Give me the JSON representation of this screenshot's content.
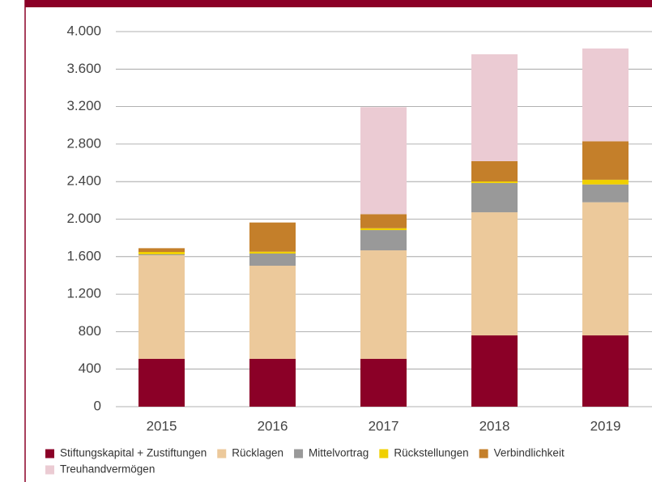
{
  "chart_data": {
    "type": "stacked_bar",
    "categories": [
      "2015",
      "2016",
      "2017",
      "2018",
      "2019"
    ],
    "series": [
      {
        "name": "Stiftungskapital + Zustiftungen",
        "color": "#8b0027",
        "values": [
          510,
          510,
          510,
          760,
          760
        ]
      },
      {
        "name": "Rücklagen",
        "color": "#ecc99b",
        "values": [
          1105,
          993,
          1157,
          1313,
          1420
        ]
      },
      {
        "name": "Mittelvortrag",
        "color": "#999999",
        "values": [
          10,
          130,
          216,
          312,
          190
        ]
      },
      {
        "name": "Rückstellungen",
        "color": "#f0d000",
        "values": [
          25,
          20,
          20,
          17,
          50
        ]
      },
      {
        "name": "Verbindlichkeit",
        "color": "#c47f2a",
        "values": [
          40,
          311,
          150,
          216,
          410
        ]
      },
      {
        "name": "Treuhandvermögen",
        "color": "#ebcbd3",
        "values": [
          0,
          0,
          1141,
          1140,
          990
        ]
      }
    ],
    "ylim": [
      0,
      4000
    ],
    "yticks": [
      0,
      400,
      800,
      {
        "value": 1200,
        "label": "1.200"
      },
      {
        "value": 1600,
        "label": "1.600"
      },
      {
        "value": 2000,
        "label": "2.000"
      },
      {
        "value": 2400,
        "label": "2.400"
      },
      {
        "value": 2800,
        "label": "2.800"
      },
      {
        "value": 3200,
        "label": "3.200"
      },
      {
        "value": 3600,
        "label": "3.600"
      },
      {
        "value": 4000,
        "label": "4.000"
      }
    ],
    "grid": true
  }
}
